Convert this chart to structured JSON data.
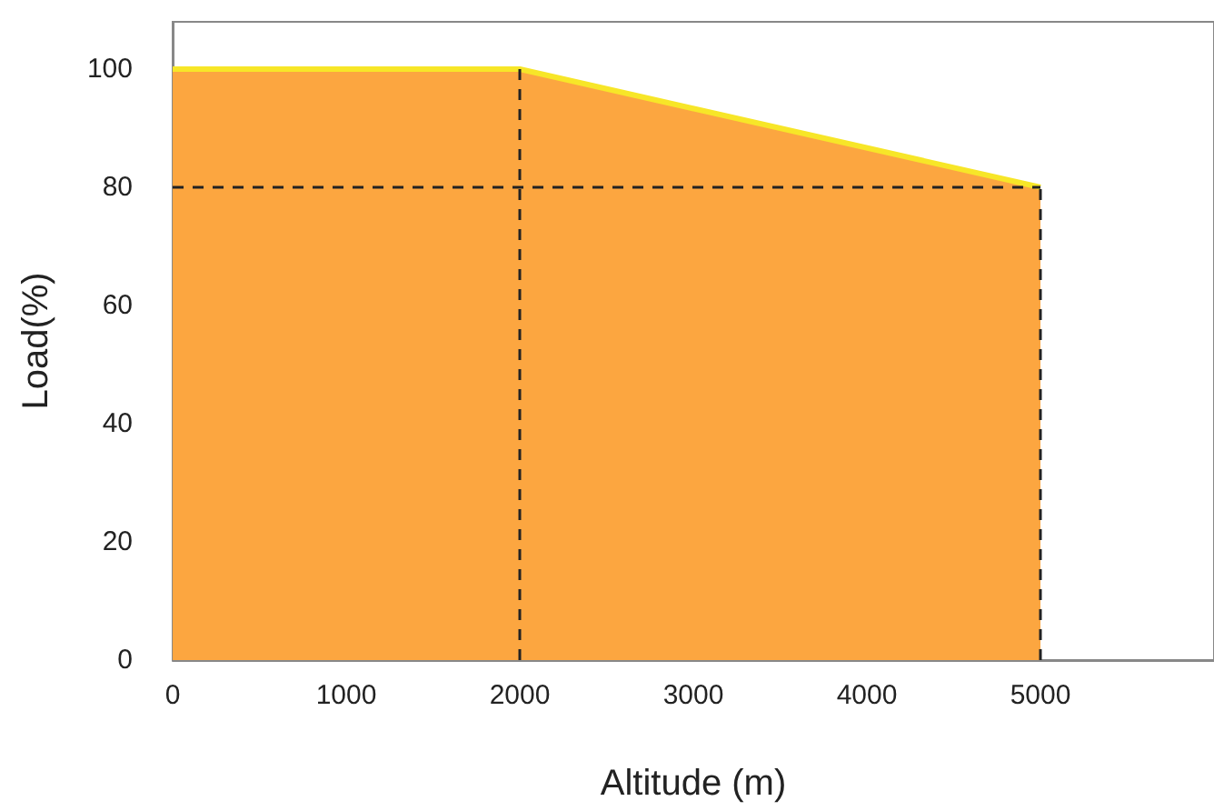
{
  "chart_data": {
    "type": "area",
    "xlabel": "Altitude (m)",
    "ylabel": "Load(%)",
    "x": [
      0,
      2000,
      5000
    ],
    "series": [
      {
        "color": "#fca640",
        "values": [
          100,
          100,
          80
        ]
      }
    ],
    "xlim": [
      0,
      6000
    ],
    "xticks": [
      0,
      1000,
      2000,
      3000,
      4000,
      5000
    ],
    "ylim": [
      0,
      108
    ],
    "yticks": [
      0,
      20,
      40,
      60,
      80,
      100
    ],
    "ref_lines": [
      {
        "axis": "y",
        "value": 80,
        "color": "#222222",
        "line_style": "dashed"
      },
      {
        "axis": "x",
        "value": 2000,
        "color": "#222222",
        "line_style": "dashed"
      },
      {
        "axis": "x",
        "value": 5000,
        "color": "#222222",
        "line_style": "dashed"
      }
    ],
    "grid": false
  }
}
